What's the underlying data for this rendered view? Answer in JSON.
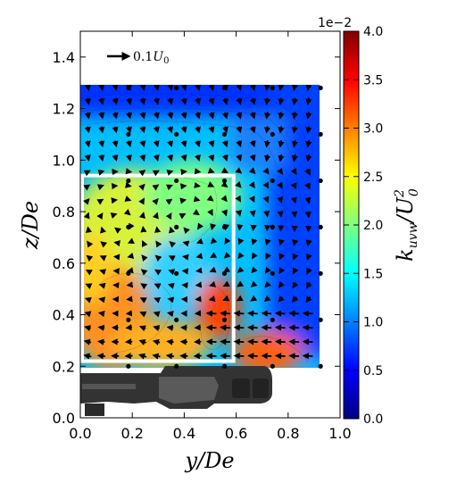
{
  "chart_data": {
    "type": "heatmap",
    "title": "",
    "xlabel": "y/De",
    "ylabel": "z/De",
    "xlim": [
      0.0,
      1.0
    ],
    "ylim": [
      0.0,
      1.5
    ],
    "xticks": [
      "0.0",
      "0.2",
      "0.4",
      "0.6",
      "0.8",
      "1.0"
    ],
    "yticks": [
      "0.0",
      "0.2",
      "0.4",
      "0.6",
      "0.8",
      "1.0",
      "1.2",
      "1.4"
    ],
    "colorbar": {
      "label": "k_uvw/U_0^2",
      "label_main": "k",
      "label_sub": "uvw",
      "label_den": "U",
      "label_den_sub": "0",
      "label_den_sup": "2",
      "range": [
        0.0,
        4.0
      ],
      "ticks": [
        "0.0",
        "0.5",
        "1.0",
        "1.5",
        "2.0",
        "2.5",
        "3.0",
        "3.5",
        "4.0"
      ],
      "scale_text": "1e−2",
      "colormap": "jet"
    },
    "reference_vector": {
      "text": "0.1",
      "unit": "U",
      "unit_sub": "0",
      "magnitude": 0.1
    },
    "measurement_extent": {
      "y": [
        0.0,
        0.92
      ],
      "z": [
        0.2,
        1.29
      ]
    },
    "highlight_box": {
      "y": [
        0.0,
        0.59
      ],
      "z": [
        0.22,
        0.94
      ],
      "color": "#ffffff"
    },
    "measurement_stations_y": [
      0.0,
      0.185,
      0.37,
      0.555,
      0.74,
      0.925
    ],
    "measurement_stations_z": [
      0.2,
      0.38,
      0.56,
      0.74,
      0.92,
      1.1,
      1.28
    ],
    "field_description": "turbulent kinetic energy, high near z 0.3-0.9 low near top boundary"
  }
}
